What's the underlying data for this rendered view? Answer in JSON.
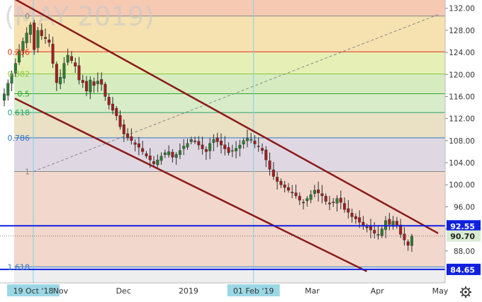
{
  "chart_data": {
    "type": "candlestick",
    "title": "(MAY 2019)",
    "xlabel": "",
    "ylabel": "",
    "ylim": [
      82.2,
      133.5
    ],
    "price_ticks": [
      132.0,
      128.0,
      124.0,
      120.0,
      116.0,
      112.0,
      108.0,
      104.0,
      100.0,
      96.0,
      92.0,
      88.0
    ],
    "price_tick_labels": [
      "132.00",
      "128.00",
      "124.00",
      "120.00",
      "116.00",
      "112.00",
      "108.00",
      "104.00",
      "100.00",
      "96.00",
      "92.00",
      "88.00"
    ],
    "x_labels": [
      {
        "label": "19 Oct '18",
        "date": "2018-10-19",
        "highlight": true
      },
      {
        "label": "Nov",
        "date": "2018-11-01",
        "highlight": false
      },
      {
        "label": "Dec",
        "date": "2018-12-01",
        "highlight": false
      },
      {
        "label": "2019",
        "date": "2019-01-01",
        "highlight": false
      },
      {
        "label": "01 Feb '19",
        "date": "2019-02-01",
        "highlight": true
      },
      {
        "label": "Mar",
        "date": "2019-03-01",
        "highlight": false
      },
      {
        "label": "Apr",
        "date": "2019-04-01",
        "highlight": false
      },
      {
        "label": "May",
        "date": "2019-05-01",
        "highlight": false
      }
    ],
    "fib_levels": [
      {
        "label": "0",
        "price": 130.6,
        "color": "#888888"
      },
      {
        "label": "0.236",
        "price": 124.1,
        "color": "#e0301e"
      },
      {
        "label": "0.382",
        "price": 120.1,
        "color": "#8cc63e"
      },
      {
        "label": "0.5",
        "price": 116.5,
        "color": "#2ea52e"
      },
      {
        "label": "0.618",
        "price": 113.1,
        "color": "#27a66d"
      },
      {
        "label": "0.786",
        "price": 108.5,
        "color": "#2f78c4"
      },
      {
        "label": "1",
        "price": 102.4,
        "color": "#888888"
      },
      {
        "label": "1.618",
        "price": 85.1,
        "color": "#2f78c4"
      }
    ],
    "horizontal_levels": [
      {
        "label": "92.55",
        "price": 92.55,
        "color": "#1020e0"
      },
      {
        "label": "84.65",
        "price": 84.65,
        "color": "#1020e0"
      }
    ],
    "last_price": {
      "label": "90.70",
      "price": 90.7
    },
    "close_series": [
      116.5,
      118.4,
      120.2,
      122.0,
      124.3,
      126.0,
      127.5,
      129.0,
      124.5,
      128.0,
      127.0,
      126.5,
      125.8,
      122.0,
      118.5,
      119.5,
      122.0,
      123.5,
      122.5,
      121.5,
      119.0,
      118.5,
      117.0,
      119.0,
      118.0,
      118.8,
      118.2,
      116.0,
      114.5,
      113.5,
      112.5,
      110.5,
      109.2,
      108.5,
      108.0,
      107.3,
      106.8,
      106.0,
      105.2,
      104.5,
      103.8,
      104.5,
      105.2,
      105.8,
      106.0,
      105.0,
      105.5,
      106.2,
      107.0,
      107.5,
      108.2,
      107.8,
      107.2,
      106.5,
      106.0,
      107.5,
      108.2,
      107.8,
      107.2,
      106.5,
      105.8,
      106.2,
      106.6,
      107.2,
      108.0,
      108.4,
      108.2,
      107.4,
      107.0,
      106.2,
      104.5,
      102.8,
      101.5,
      100.6,
      100.0,
      99.5,
      99.0,
      98.5,
      98.0,
      97.2,
      96.8,
      97.5,
      98.2,
      99.0,
      98.5,
      98.0,
      97.0,
      96.5,
      96.8,
      97.5,
      96.8,
      95.5,
      95.0,
      94.2,
      93.8,
      93.2,
      92.7,
      92.2,
      91.8,
      91.2,
      91.0,
      92.0,
      93.5,
      92.8,
      93.4,
      92.7,
      91.0,
      90.0,
      89.0,
      90.7
    ],
    "channel_lines": [
      {
        "name": "upper",
        "start": [
          "2018-10-19",
          131.8
        ],
        "end": [
          "2019-04-30",
          91.2
        ]
      },
      {
        "name": "lower",
        "start": [
          "2018-10-19",
          114.0
        ],
        "end": [
          "2019-03-27",
          84.3
        ]
      }
    ],
    "trend_line": {
      "style": "dashed",
      "start": [
        "2018-10-19",
        102.4
      ],
      "end": [
        "2019-05-01",
        131.0
      ]
    },
    "vertical_markers": [
      "2018-10-19",
      "2019-02-01"
    ]
  }
}
